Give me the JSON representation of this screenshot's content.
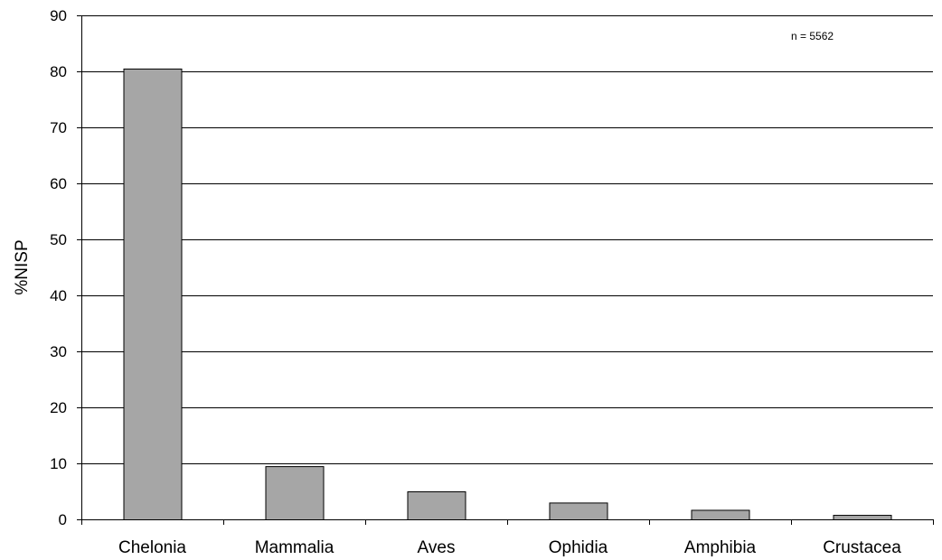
{
  "chart_data": {
    "type": "bar",
    "title": "",
    "xlabel": "",
    "ylabel": "%NISP",
    "annotation": "n = 5562",
    "categories": [
      "Chelonia",
      "Mammalia",
      "Aves",
      "Ophidia",
      "Amphibia",
      "Crustacea"
    ],
    "values": [
      80.5,
      9.5,
      5.0,
      3.0,
      1.7,
      0.8
    ],
    "ylim": [
      0,
      90
    ],
    "yticks": [
      "0",
      "10",
      "20",
      "30",
      "40",
      "50",
      "60",
      "70",
      "80",
      "90"
    ],
    "grid": true,
    "legend": "none",
    "bar_color": "#a6a6a6",
    "bar_border_color": "#000000",
    "grid_color": "#000000"
  }
}
